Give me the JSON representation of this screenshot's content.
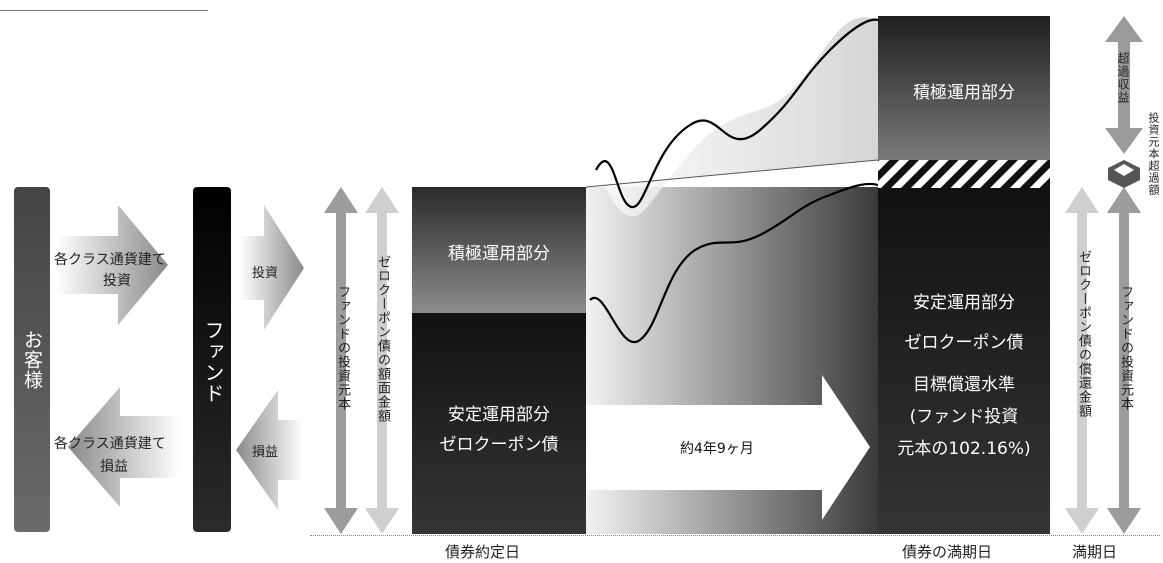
{
  "customer": "お客様",
  "fund": "ファンド",
  "flow_in": {
    "line1": "各クラス通貨建て",
    "line2": "投資"
  },
  "flow_out": {
    "line1": "各クラス通貨建て",
    "line2": "損益"
  },
  "invest": "投資",
  "profit_loss": "損益",
  "fund_principal": "ファンドの投資元本",
  "zero_coupon_face": "ゼロクーポン債の額面金額",
  "start_active": "積極運用部分",
  "start_stable": {
    "line1": "安定運用部分",
    "line2": "ゼロクーポン債"
  },
  "duration": "約4年9ヶ月",
  "end_active": "積極運用部分",
  "end_stable": {
    "line1": "安定運用部分",
    "line2": "ゼロクーポン債",
    "line3": "目標償還水準",
    "line4": "(ファンド投資",
    "line5": "元本の102.16%)"
  },
  "zero_coupon_redemption": "ゼロクーポン債の償還金額",
  "fund_principal_right": "ファンドの投資元本",
  "excess_return": "超過収益",
  "principal_excess": "投資元本超過額",
  "date_start": "債券約定日",
  "date_bond_maturity": "債券の満期日",
  "date_maturity": "満期日"
}
